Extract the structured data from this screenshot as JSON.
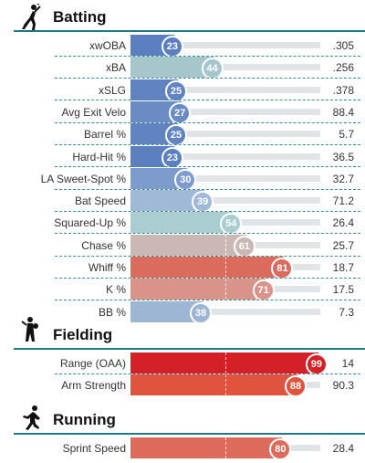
{
  "sections": [
    {
      "key": "batting",
      "title": "Batting",
      "icon": "batter-icon",
      "color_scale": "percentile",
      "rows": [
        {
          "label": "xwOBA",
          "percentile": 23,
          "value": ".305",
          "color": "#5b7fbf"
        },
        {
          "label": "xBA",
          "percentile": 44,
          "value": ".256",
          "color": "#a5c7cc"
        },
        {
          "label": "xSLG",
          "percentile": 25,
          "value": ".378",
          "color": "#6283c1"
        },
        {
          "label": "Avg Exit Velo",
          "percentile": 27,
          "value": "88.4",
          "color": "#6a8bc4"
        },
        {
          "label": "Barrel %",
          "percentile": 25,
          "value": "5.7",
          "color": "#6283c1"
        },
        {
          "label": "Hard-Hit %",
          "percentile": 23,
          "value": "36.5",
          "color": "#5b7fbf"
        },
        {
          "label": "LA Sweet-Spot %",
          "percentile": 30,
          "value": "32.7",
          "color": "#7d9bcc"
        },
        {
          "label": "Bat Speed",
          "percentile": 39,
          "value": "71.2",
          "color": "#9fb9d6"
        },
        {
          "label": "Squared-Up %",
          "percentile": 54,
          "value": "26.4",
          "color": "#a9cdd0"
        },
        {
          "label": "Chase %",
          "percentile": 61,
          "value": "25.7",
          "color": "#c9b8b3"
        },
        {
          "label": "Whiff %",
          "percentile": 81,
          "value": "18.7",
          "color": "#db6b5c"
        },
        {
          "label": "K %",
          "percentile": 71,
          "value": "17.5",
          "color": "#d99388"
        },
        {
          "label": "BB %",
          "percentile": 38,
          "value": "7.3",
          "color": "#9cb6d4"
        }
      ]
    },
    {
      "key": "fielding",
      "title": "Fielding",
      "icon": "fielder-icon",
      "rows": [
        {
          "label": "Range (OAA)",
          "percentile": 99,
          "value": "14",
          "color": "#d62027"
        },
        {
          "label": "Arm Strength",
          "percentile": 88,
          "value": "90.3",
          "color": "#e0533d"
        }
      ]
    },
    {
      "key": "running",
      "title": "Running",
      "icon": "runner-icon",
      "rows": [
        {
          "label": "Sprint Speed",
          "percentile": 80,
          "value": "28.4",
          "color": "#dc6b5c"
        }
      ]
    }
  ],
  "chart_data": {
    "type": "bar",
    "orientation": "horizontal",
    "xlim": [
      0,
      100
    ],
    "categories": [
      "xwOBA",
      "xBA",
      "xSLG",
      "Avg Exit Velo",
      "Barrel %",
      "Hard-Hit %",
      "LA Sweet-Spot %",
      "Bat Speed",
      "Squared-Up %",
      "Chase %",
      "Whiff %",
      "K %",
      "BB %",
      "Range (OAA)",
      "Arm Strength",
      "Sprint Speed"
    ],
    "percentiles": [
      23,
      44,
      25,
      27,
      25,
      23,
      30,
      39,
      54,
      61,
      81,
      71,
      38,
      99,
      88,
      80
    ],
    "stat_values": [
      ".305",
      ".256",
      ".378",
      "88.4",
      "5.7",
      "36.5",
      "32.7",
      "71.2",
      "26.4",
      "25.7",
      "18.7",
      "17.5",
      "7.3",
      "14",
      "90.3",
      "28.4"
    ],
    "groups": [
      "Batting",
      "Fielding",
      "Running"
    ],
    "gridlines_at_percentile": [
      50
    ]
  }
}
